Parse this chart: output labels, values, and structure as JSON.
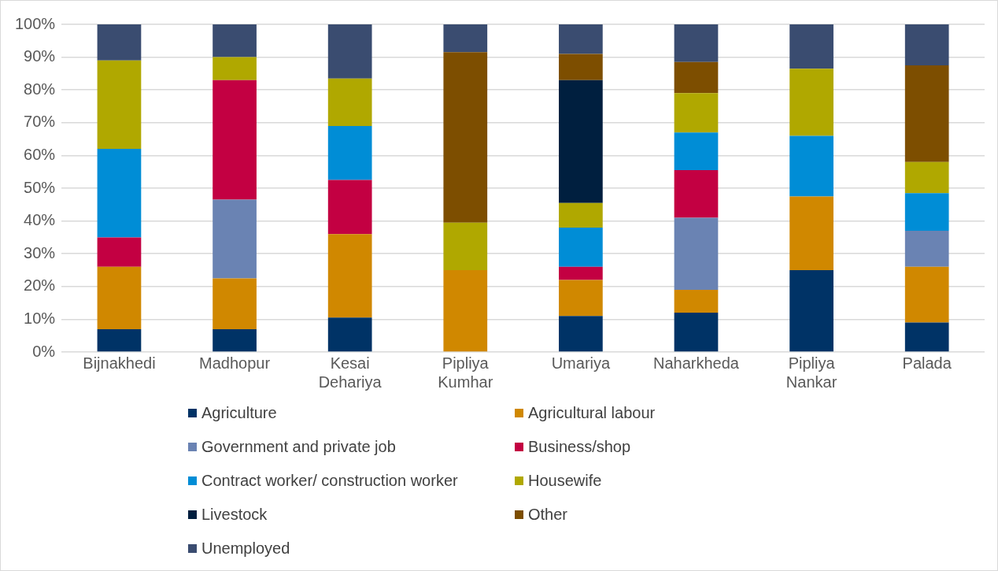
{
  "chart_data": {
    "type": "bar",
    "stacked": true,
    "categories": [
      "Bijnakhedi",
      "Madhopur",
      "Kesai Dehariya",
      "Pipliya Kumhar",
      "Umariya",
      "Naharkheda",
      "Pipliya Nankar",
      "Palada"
    ],
    "series": [
      {
        "name": "Agriculture",
        "color": "#003366",
        "values": [
          7,
          7,
          10.5,
          0,
          11,
          12,
          25,
          9
        ]
      },
      {
        "name": "Agricultural labour",
        "color": "#d08800",
        "values": [
          19,
          15.5,
          25.5,
          25,
          11,
          7,
          22.5,
          17
        ]
      },
      {
        "name": "Government and private job",
        "color": "#6a83b3",
        "values": [
          0,
          24,
          0,
          0,
          0,
          22,
          0,
          11
        ]
      },
      {
        "name": "Business/shop",
        "color": "#c30042",
        "values": [
          9,
          36.5,
          16.5,
          0,
          4,
          14.5,
          0,
          0
        ]
      },
      {
        "name": "Contract worker/ construction worker",
        "color": "#008dd6",
        "values": [
          27,
          0,
          16.5,
          0,
          12,
          11.5,
          18.5,
          11.5
        ]
      },
      {
        "name": "Housewife",
        "color": "#b0a800",
        "values": [
          27,
          7,
          14.5,
          14.5,
          7.5,
          12,
          20.5,
          9.5
        ]
      },
      {
        "name": "Livestock",
        "color": "#001f3f",
        "values": [
          0,
          0,
          0,
          0,
          37.5,
          0,
          0,
          0
        ]
      },
      {
        "name": "Other",
        "color": "#7d4e00",
        "values": [
          0,
          0,
          0,
          52,
          8,
          9.5,
          0,
          29.5
        ]
      },
      {
        "name": "Unemployed",
        "color": "#3a4c70",
        "values": [
          11,
          10,
          16.5,
          8.5,
          9,
          11.5,
          13.5,
          12.5
        ]
      }
    ],
    "ylim": [
      0,
      100
    ],
    "yticks": [
      {
        "value": 0,
        "label": "0%"
      },
      {
        "value": 10,
        "label": "10%"
      },
      {
        "value": 20,
        "label": "20%"
      },
      {
        "value": 30,
        "label": "30%"
      },
      {
        "value": 40,
        "label": "40%"
      },
      {
        "value": 50,
        "label": "50%"
      },
      {
        "value": 60,
        "label": "60%"
      },
      {
        "value": 70,
        "label": "70%"
      },
      {
        "value": 80,
        "label": "80%"
      },
      {
        "value": 90,
        "label": "90%"
      },
      {
        "value": 100,
        "label": "100%"
      }
    ],
    "grid": "y",
    "legend": "bottom"
  }
}
